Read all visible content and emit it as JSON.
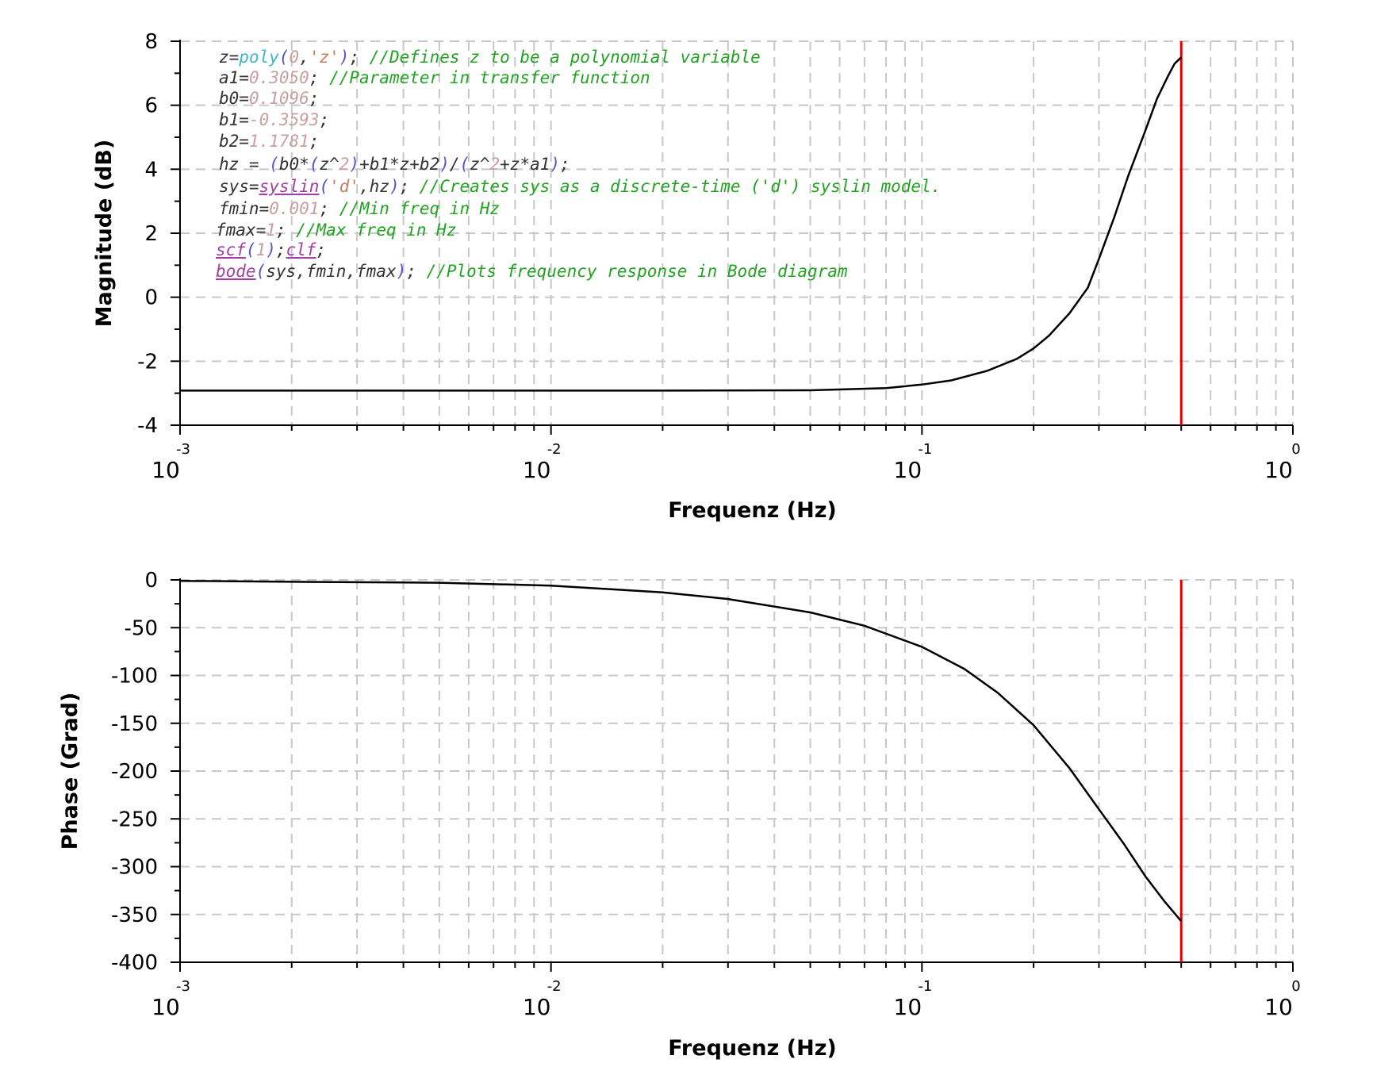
{
  "chart_data": [
    {
      "type": "line",
      "xscale": "log",
      "xlim": [
        0.001,
        1
      ],
      "ylim": [
        -4,
        8
      ],
      "yticks": [
        -4,
        -2,
        0,
        2,
        4,
        6,
        8
      ],
      "ytick_labels": [
        "-4",
        "-2",
        "0",
        "2",
        "4",
        "6",
        "8"
      ],
      "xtick_bases": [
        "10",
        "10",
        "10",
        "10"
      ],
      "xtick_exps": [
        "-3",
        "-2",
        "-1",
        "0"
      ],
      "xlabel": "Frequenz (Hz)",
      "ylabel": "Magnitude (dB)",
      "grid": true,
      "marker_line_x": 0.5,
      "marker_color": "#e00000",
      "series": [
        {
          "color": "#000000",
          "x": [
            0.001,
            0.002,
            0.005,
            0.01,
            0.02,
            0.05,
            0.08,
            0.1,
            0.12,
            0.15,
            0.18,
            0.2,
            0.22,
            0.25,
            0.28,
            0.3,
            0.33,
            0.36,
            0.4,
            0.43,
            0.46,
            0.48,
            0.5
          ],
          "y": [
            -2.92,
            -2.92,
            -2.92,
            -2.92,
            -2.92,
            -2.91,
            -2.84,
            -2.73,
            -2.6,
            -2.3,
            -1.93,
            -1.6,
            -1.2,
            -0.5,
            0.3,
            1.2,
            2.5,
            3.8,
            5.2,
            6.2,
            6.9,
            7.3,
            7.5
          ]
        }
      ]
    },
    {
      "type": "line",
      "xscale": "log",
      "xlim": [
        0.001,
        1
      ],
      "ylim": [
        -400,
        0
      ],
      "yticks": [
        -400,
        -350,
        -300,
        -250,
        -200,
        -150,
        -100,
        -50,
        0
      ],
      "ytick_labels": [
        "-400",
        "-350",
        "-300",
        "-250",
        "-200",
        "-150",
        "-100",
        "-50",
        "0"
      ],
      "xtick_bases": [
        "10",
        "10",
        "10",
        "10"
      ],
      "xtick_exps": [
        "-3",
        "-2",
        "-1",
        "0"
      ],
      "xlabel": "Frequenz (Hz)",
      "ylabel": "Phase (Grad)",
      "grid": true,
      "marker_line_x": 0.5,
      "marker_color": "#e00000",
      "series": [
        {
          "color": "#000000",
          "x": [
            0.001,
            0.002,
            0.005,
            0.01,
            0.02,
            0.03,
            0.05,
            0.07,
            0.1,
            0.13,
            0.16,
            0.2,
            0.25,
            0.3,
            0.35,
            0.4,
            0.45,
            0.5
          ],
          "y": [
            -1,
            -2,
            -3,
            -6,
            -13,
            -20,
            -34,
            -48,
            -70,
            -93,
            -118,
            -152,
            -197,
            -240,
            -276,
            -310,
            -336,
            -357
          ]
        }
      ]
    }
  ],
  "code_lines": [
    [
      {
        "t": "z=",
        "c": "#333333"
      },
      {
        "t": "poly",
        "c": "#3fb8c8"
      },
      {
        "t": "(",
        "c": "#5555cc"
      },
      {
        "t": "0",
        "c": "#c8a0a0"
      },
      {
        "t": ",",
        "c": "#333333"
      },
      {
        "t": "'z'",
        "c": "#c08060"
      },
      {
        "t": ")",
        "c": "#5555cc"
      },
      {
        "t": "; ",
        "c": "#333333"
      },
      {
        "t": "//Defines z to be a polynomial variable",
        "c": "#22a322"
      }
    ],
    [
      {
        "t": "a1=",
        "c": "#333333"
      },
      {
        "t": "0.3050",
        "c": "#c8a0a0"
      },
      {
        "t": "; ",
        "c": "#333333"
      },
      {
        "t": "//Parameter in transfer function",
        "c": "#22a322"
      }
    ],
    [
      {
        "t": "b0=",
        "c": "#333333"
      },
      {
        "t": "0.1096",
        "c": "#c8a0a0"
      },
      {
        "t": ";",
        "c": "#333333"
      }
    ],
    [
      {
        "t": "b1=",
        "c": "#333333"
      },
      {
        "t": "-0.3593",
        "c": "#c8a0a0"
      },
      {
        "t": ";",
        "c": "#333333"
      }
    ],
    [
      {
        "t": "b2=",
        "c": "#333333"
      },
      {
        "t": "1.1781",
        "c": "#c8a0a0"
      },
      {
        "t": ";",
        "c": "#333333"
      }
    ],
    [
      {
        "t": "hz = ",
        "c": "#333333"
      },
      {
        "t": "(",
        "c": "#5555cc"
      },
      {
        "t": "b0*",
        "c": "#333333"
      },
      {
        "t": "(",
        "c": "#5555cc"
      },
      {
        "t": "z^",
        "c": "#333333"
      },
      {
        "t": "2",
        "c": "#c8a0a0"
      },
      {
        "t": ")",
        "c": "#5555cc"
      },
      {
        "t": "+b1*z+b2",
        "c": "#333333"
      },
      {
        "t": ")",
        "c": "#5555cc"
      },
      {
        "t": "/",
        "c": "#333333"
      },
      {
        "t": "(",
        "c": "#5555cc"
      },
      {
        "t": "z^",
        "c": "#333333"
      },
      {
        "t": "2",
        "c": "#c8a0a0"
      },
      {
        "t": "+z*a1",
        "c": "#333333"
      },
      {
        "t": ")",
        "c": "#5555cc"
      },
      {
        "t": ";",
        "c": "#333333"
      }
    ],
    [
      {
        "t": "sys=",
        "c": "#333333"
      },
      {
        "t": "syslin",
        "c": "#a040a0",
        "u": true
      },
      {
        "t": "(",
        "c": "#5555cc"
      },
      {
        "t": "'d'",
        "c": "#c08060"
      },
      {
        "t": ",hz",
        "c": "#333333"
      },
      {
        "t": ")",
        "c": "#5555cc"
      },
      {
        "t": "; ",
        "c": "#333333"
      },
      {
        "t": "//Creates sys as a discrete-time ('d') syslin model.",
        "c": "#22a322"
      }
    ],
    [
      {
        "t": "fmin=",
        "c": "#333333"
      },
      {
        "t": "0.001",
        "c": "#c8a0a0"
      },
      {
        "t": "; ",
        "c": "#333333"
      },
      {
        "t": "//Min freq in Hz",
        "c": "#22a322"
      }
    ],
    [
      {
        "t": "fmax=",
        "c": "#333333"
      },
      {
        "t": "1",
        "c": "#c8a0a0"
      },
      {
        "t": "; ",
        "c": "#333333"
      },
      {
        "t": "//Max freq in Hz",
        "c": "#22a322"
      }
    ],
    [
      {
        "t": "scf",
        "c": "#a040a0",
        "u": true
      },
      {
        "t": "(",
        "c": "#5555cc"
      },
      {
        "t": "1",
        "c": "#c8a0a0"
      },
      {
        "t": ")",
        "c": "#5555cc"
      },
      {
        "t": ";",
        "c": "#333333"
      },
      {
        "t": "clf",
        "c": "#a040a0",
        "u": true
      },
      {
        "t": ";",
        "c": "#333333"
      }
    ],
    [
      {
        "t": "bode",
        "c": "#a040a0",
        "u": true
      },
      {
        "t": "(",
        "c": "#5555cc"
      },
      {
        "t": "sys,fmin,fmax",
        "c": "#333333"
      },
      {
        "t": ")",
        "c": "#5555cc"
      },
      {
        "t": "; ",
        "c": "#333333"
      },
      {
        "t": "//Plots frequency response in Bode diagram",
        "c": "#22a322"
      }
    ]
  ]
}
